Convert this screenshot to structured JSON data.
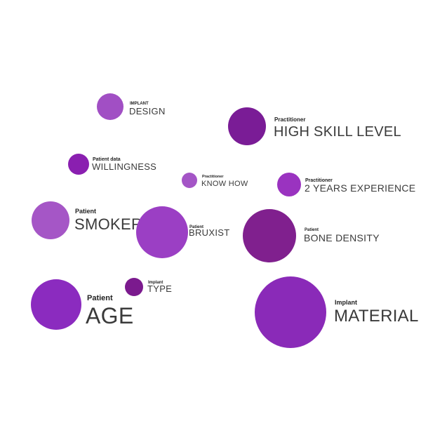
{
  "nodes": [
    {
      "category": "IMPLANT",
      "label": "DESIGN"
    },
    {
      "category": "Practitioner",
      "label": "HIGH SKILL LEVEL"
    },
    {
      "category": "Patient data",
      "label": "WILLINGNESS"
    },
    {
      "category": "Practitioner",
      "label": "KNOW HOW"
    },
    {
      "category": "Practitioner",
      "label": "2 YEARS EXPERIENCE"
    },
    {
      "category": "Patient",
      "label": "SMOKER"
    },
    {
      "category": "Patient",
      "label": "BRUXIST"
    },
    {
      "category": "Patient",
      "label": "BONE DENSITY"
    },
    {
      "category": "Implant",
      "label": "TYPE"
    },
    {
      "category": "Patient",
      "label": "AGE"
    },
    {
      "category": "Implant",
      "label": "MATERIAL"
    }
  ]
}
